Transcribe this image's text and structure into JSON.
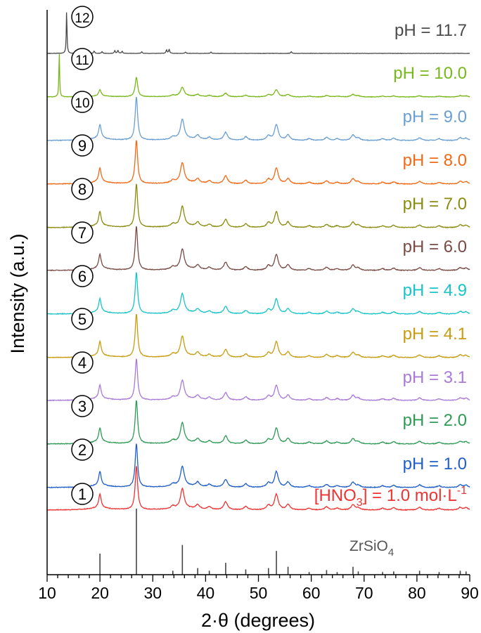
{
  "chart_data": {
    "type": "line",
    "xlabel": "2·θ (degrees)",
    "ylabel": "Intensity (a.u.)",
    "xlim": [
      10,
      90
    ],
    "x_ticks": [
      "10",
      "20",
      "30",
      "40",
      "50",
      "60",
      "70",
      "80",
      "90"
    ],
    "y_ticks_shown": false,
    "grid": false,
    "legend": "inline labels at right of each trace",
    "reference_pattern": {
      "name": "ZrSiO",
      "name_subscript": "4",
      "lines": [
        {
          "x": 20.0,
          "h": 0.32
        },
        {
          "x": 26.9,
          "h": 1.0
        },
        {
          "x": 33.8,
          "h": 0.06
        },
        {
          "x": 35.6,
          "h": 0.45
        },
        {
          "x": 38.5,
          "h": 0.1
        },
        {
          "x": 40.7,
          "h": 0.06
        },
        {
          "x": 43.8,
          "h": 0.18
        },
        {
          "x": 47.6,
          "h": 0.08
        },
        {
          "x": 51.9,
          "h": 0.1
        },
        {
          "x": 53.4,
          "h": 0.36
        },
        {
          "x": 55.6,
          "h": 0.12
        },
        {
          "x": 59.6,
          "h": 0.04
        },
        {
          "x": 62.9,
          "h": 0.07
        },
        {
          "x": 64.9,
          "h": 0.04
        },
        {
          "x": 67.9,
          "h": 0.12
        },
        {
          "x": 68.9,
          "h": 0.05
        },
        {
          "x": 73.5,
          "h": 0.04
        },
        {
          "x": 75.6,
          "h": 0.05
        },
        {
          "x": 80.5,
          "h": 0.06
        },
        {
          "x": 84.2,
          "h": 0.04
        },
        {
          "x": 88.2,
          "h": 0.06
        },
        {
          "x": 89.3,
          "h": 0.05
        }
      ]
    },
    "series": [
      {
        "id": "1",
        "label": "[HNO",
        "label_sub": "3",
        "label_tail": "] = 1.0 mol·L",
        "label_sup": "-1",
        "color": "#ee3333",
        "type": "zircon",
        "peak_scale": 1.0,
        "noise": 0.6
      },
      {
        "id": "2",
        "label": "pH = 1.0",
        "color": "#1f5fc8",
        "type": "zircon",
        "peak_scale": 1.0,
        "noise": 0.6
      },
      {
        "id": "3",
        "label": "pH = 2.0",
        "color": "#2e9a55",
        "type": "zircon",
        "peak_scale": 1.0,
        "noise": 0.6
      },
      {
        "id": "4",
        "label": "pH = 3.1",
        "color": "#a97ad8",
        "type": "zircon",
        "peak_scale": 0.95,
        "noise": 0.6
      },
      {
        "id": "5",
        "label": "pH = 4.1",
        "color": "#c89c12",
        "type": "zircon",
        "peak_scale": 1.0,
        "noise": 0.6
      },
      {
        "id": "6",
        "label": "pH = 4.9",
        "color": "#18c4c8",
        "type": "zircon",
        "peak_scale": 0.95,
        "noise": 0.6
      },
      {
        "id": "7",
        "label": "pH = 6.0",
        "color": "#7a4b44",
        "type": "zircon",
        "peak_scale": 1.0,
        "noise": 0.6
      },
      {
        "id": "8",
        "label": "pH = 7.0",
        "color": "#8a8c10",
        "type": "zircon",
        "peak_scale": 1.0,
        "noise": 0.6
      },
      {
        "id": "9",
        "label": "pH = 8.0",
        "color": "#f06a18",
        "type": "zircon",
        "peak_scale": 1.0,
        "noise": 0.6
      },
      {
        "id": "10",
        "label": "pH = 9.0",
        "color": "#6a9fd2",
        "type": "zircon",
        "peak_scale": 1.0,
        "noise": 0.6
      },
      {
        "id": "11",
        "label": "pH = 10.0",
        "color": "#78b81a",
        "type": "zircon_plus_peak",
        "peak_scale": 0.45,
        "noise": 0.5,
        "extra_peak_x": 12.3,
        "extra_peak_h": 1.05
      },
      {
        "id": "12",
        "label": "pH = 11.7",
        "color": "#4a4a4a",
        "type": "other",
        "peak_scale": 1.0,
        "noise": 0.3,
        "extra_peak_x": 13.7,
        "extra_peak_h": 1.0
      }
    ]
  }
}
